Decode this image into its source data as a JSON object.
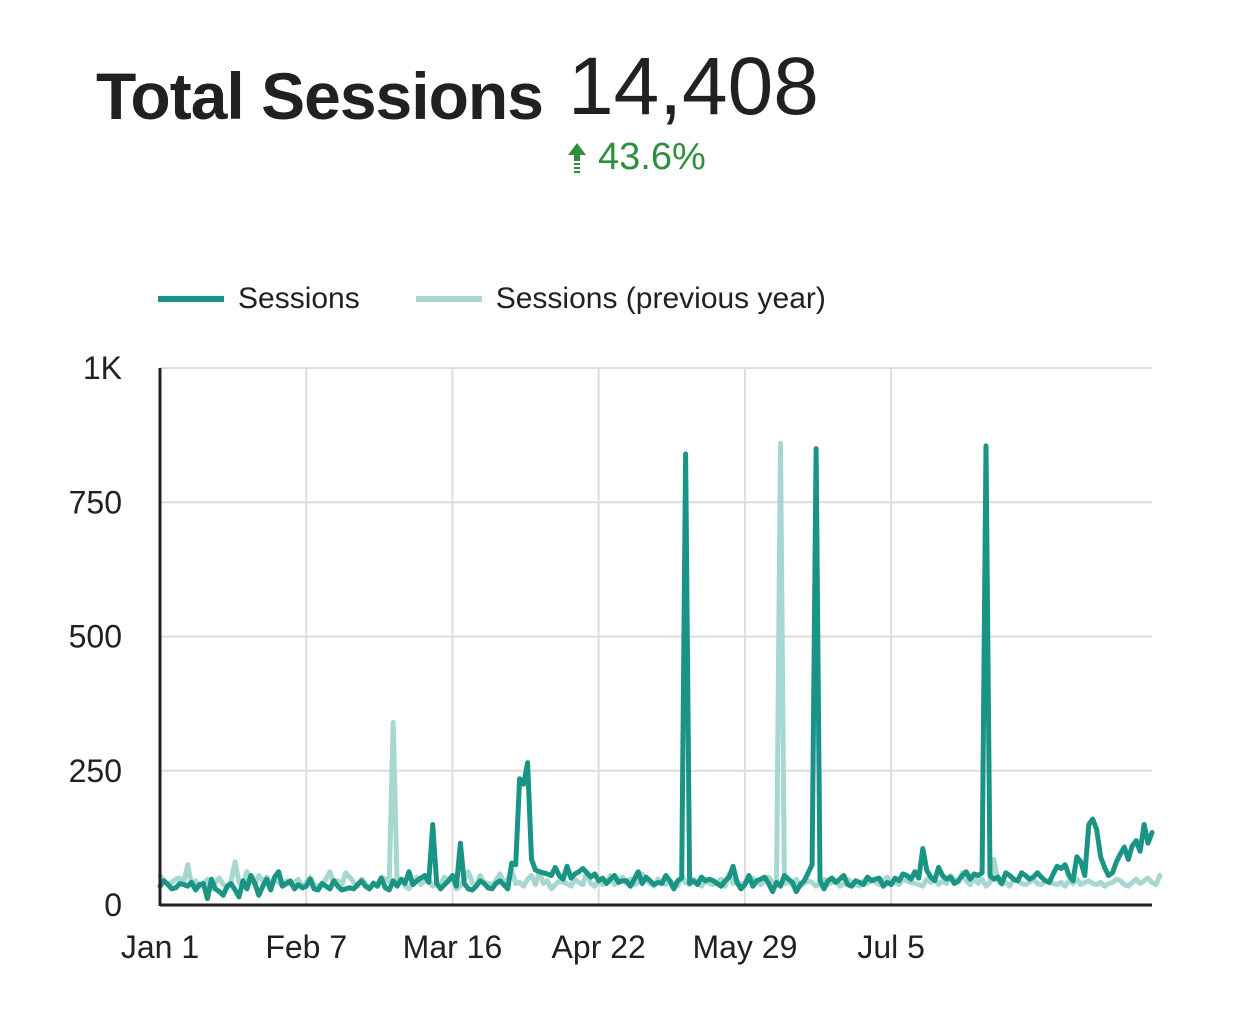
{
  "metric": {
    "title": "Total Sessions",
    "value": "14,408",
    "delta": "43.6%",
    "delta_color": "#2f8f3f",
    "delta_icon": "arrow-up-icon"
  },
  "colors": {
    "sessions": "#1a9484",
    "previous": "#a6d8d0",
    "grid": "#dddddd",
    "axis": "#222222"
  },
  "chart_data": {
    "type": "line",
    "x_start": "Jan 1",
    "x_end": "Aug 25",
    "ylim": [
      0,
      1000
    ],
    "y_ticks": [
      0,
      250,
      500,
      750,
      1000
    ],
    "y_tick_labels": [
      "0",
      "250",
      "500",
      "750",
      "1K"
    ],
    "x_tick_labels": [
      "Jan 1",
      "Feb 7",
      "Mar 16",
      "Apr 22",
      "May 29",
      "Jul 5"
    ],
    "grid": true,
    "legend_position": "top",
    "series": [
      {
        "name": "Sessions",
        "color": "#1a9484",
        "values": [
          35,
          45,
          38,
          30,
          32,
          40,
          38,
          35,
          42,
          28,
          38,
          40,
          12,
          48,
          30,
          25,
          18,
          35,
          40,
          28,
          15,
          45,
          30,
          55,
          40,
          18,
          35,
          48,
          28,
          52,
          62,
          35,
          40,
          45,
          30,
          38,
          32,
          35,
          48,
          30,
          28,
          40,
          35,
          30,
          45,
          35,
          28,
          30,
          32,
          30,
          38,
          45,
          35,
          30,
          40,
          35,
          50,
          32,
          28,
          45,
          35,
          48,
          40,
          62,
          38,
          45,
          50,
          55,
          42,
          150,
          40,
          30,
          38,
          45,
          55,
          35,
          115,
          40,
          30,
          28,
          35,
          45,
          40,
          32,
          30,
          40,
          45,
          38,
          30,
          78,
          75,
          235,
          225,
          265,
          85,
          65,
          62,
          60,
          58,
          55,
          70,
          55,
          48,
          72,
          50,
          58,
          62,
          68,
          60,
          52,
          58,
          45,
          50,
          40,
          48,
          55,
          42,
          45,
          45,
          35,
          48,
          62,
          40,
          52,
          45,
          38,
          42,
          40,
          55,
          45,
          30,
          45,
          50,
          840,
          40,
          45,
          38,
          52,
          45,
          48,
          45,
          40,
          35,
          45,
          52,
          72,
          42,
          30,
          38,
          55,
          35,
          45,
          48,
          52,
          40,
          25,
          42,
          35,
          55,
          48,
          42,
          25,
          38,
          45,
          60,
          75,
          850,
          45,
          30,
          45,
          50,
          42,
          48,
          55,
          38,
          35,
          45,
          42,
          38,
          52,
          45,
          48,
          50,
          35,
          42,
          38,
          50,
          45,
          58,
          55,
          48,
          62,
          50,
          105,
          65,
          52,
          45,
          70,
          55,
          48,
          52,
          40,
          45,
          55,
          62,
          48,
          58,
          55,
          60,
          855,
          55,
          48,
          52,
          40,
          60,
          55,
          48,
          45,
          60,
          55,
          48,
          52,
          60,
          52,
          45,
          42,
          58,
          72,
          68,
          75,
          55,
          45,
          90,
          80,
          55,
          150,
          160,
          140,
          90,
          70,
          55,
          60,
          80,
          95,
          108,
          85,
          110,
          120,
          100,
          150,
          115,
          135
        ]
      },
      {
        "name": "Sessions (previous year)",
        "color": "#a6d8d0",
        "values": [
          55,
          45,
          38,
          42,
          48,
          50,
          42,
          75,
          38,
          45,
          35,
          40,
          48,
          30,
          42,
          50,
          38,
          32,
          45,
          80,
          42,
          35,
          62,
          48,
          38,
          55,
          45,
          52,
          40,
          48,
          42,
          35,
          45,
          38,
          42,
          48,
          32,
          42,
          52,
          38,
          35,
          40,
          48,
          62,
          40,
          45,
          38,
          60,
          52,
          42,
          35,
          48,
          40,
          30,
          42,
          38,
          52,
          48,
          44,
          340,
          40,
          48,
          35,
          30,
          42,
          52,
          38,
          45,
          48,
          35,
          40,
          38,
          52,
          45,
          48,
          30,
          35,
          48,
          62,
          42,
          35,
          55,
          42,
          40,
          38,
          45,
          58,
          42,
          48,
          65,
          40,
          42,
          35,
          48,
          55,
          38,
          62,
          40,
          45,
          30,
          38,
          45,
          42,
          40,
          35,
          48,
          42,
          38,
          62,
          40,
          35,
          45,
          38,
          42,
          55,
          38,
          45,
          52,
          40,
          48,
          38,
          42,
          58,
          45,
          40,
          35,
          48,
          42,
          38,
          45,
          40,
          35,
          55,
          42,
          38,
          48,
          42,
          35,
          45,
          40,
          38,
          42,
          48,
          35,
          58,
          40,
          45,
          38,
          42,
          45,
          50,
          42,
          38,
          45,
          52,
          42,
          38,
          860,
          40,
          42,
          38,
          48,
          35,
          40,
          45,
          42,
          35,
          40,
          48,
          38,
          42,
          45,
          35,
          40,
          48,
          42,
          38,
          35,
          45,
          40,
          48,
          42,
          38,
          45,
          52,
          40,
          42,
          38,
          48,
          45,
          42,
          40,
          38,
          35,
          48,
          42,
          50,
          38,
          45,
          40,
          55,
          48,
          42,
          60,
          45,
          38,
          52,
          40,
          48,
          35,
          42,
          85,
          45,
          38,
          42,
          35,
          48,
          45,
          40,
          38,
          42,
          48,
          40,
          38,
          45,
          42,
          40,
          38,
          42,
          35,
          45,
          40,
          48,
          38,
          42,
          45,
          40,
          38,
          42,
          35,
          40,
          42,
          48,
          45,
          38,
          35,
          42,
          48,
          40,
          45,
          50,
          42,
          38,
          55
        ]
      }
    ]
  }
}
